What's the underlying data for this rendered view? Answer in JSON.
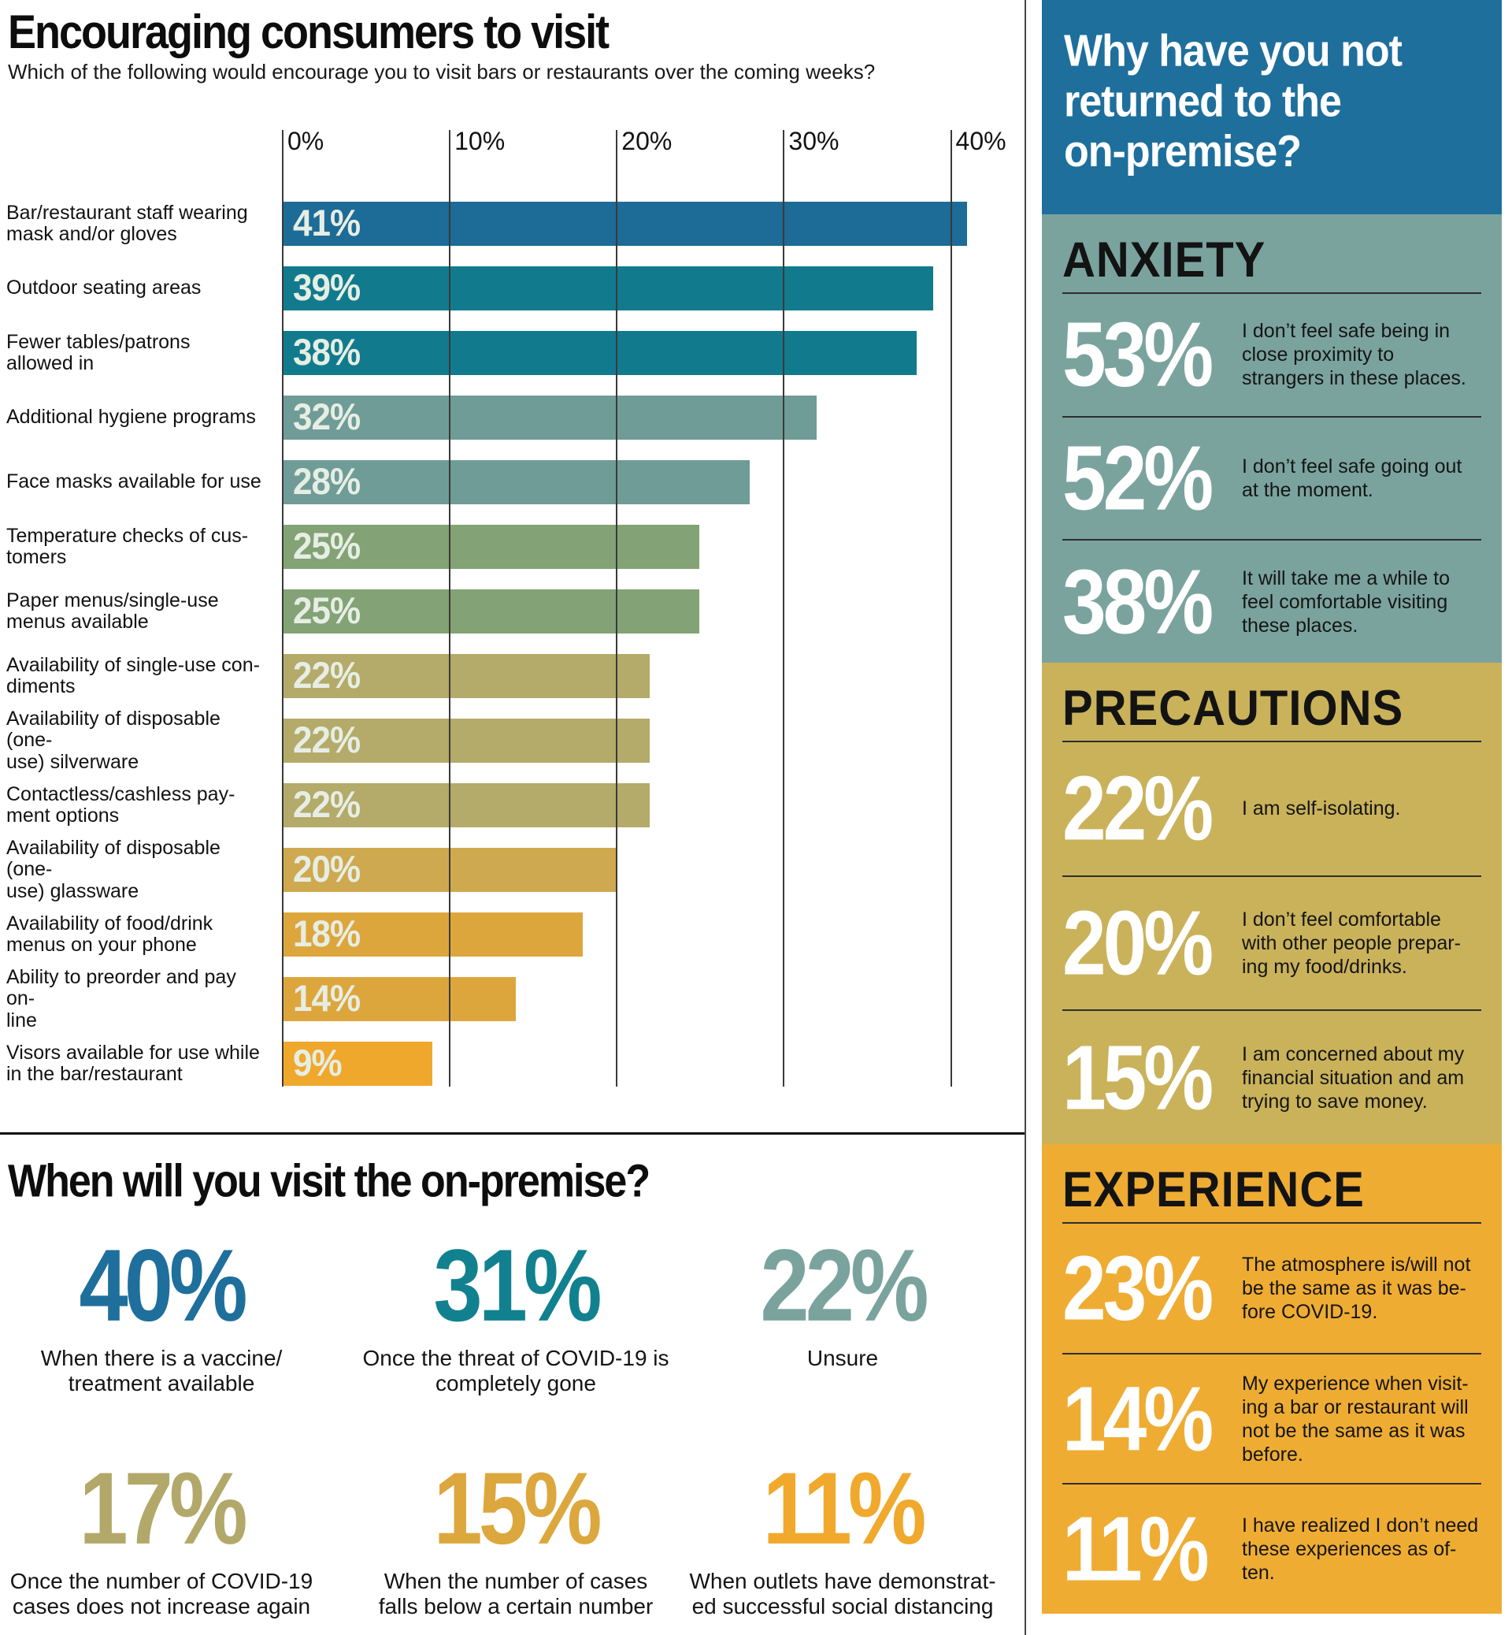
{
  "chart_data": {
    "type": "bar",
    "orientation": "horizontal",
    "title": "Encouraging consumers to visit",
    "subtitle": "Which of the following would encourage you to visit bars or restaurants over the coming weeks?",
    "xlabel": "",
    "ylabel": "",
    "xlim": [
      0,
      44.5
    ],
    "grid": true,
    "axis_ticks": [
      "0%",
      "10%",
      "20%",
      "30%",
      "40%"
    ],
    "categories": [
      "Bar/restaurant staff wearing\nmask and/or gloves",
      "Outdoor seating areas",
      "Fewer tables/patrons\nallowed in",
      "Additional hygiene programs",
      "Face masks available for use",
      "Temperature checks of cus-\ntomers",
      "Paper menus/single-use\nmenus available",
      "Availability of single-use con-\ndiments",
      "Availability of disposable (one-\nuse) silverware",
      "Contactless/cashless pay-\nment options",
      "Availability of disposable (one-\nuse) glassware",
      "Availability of food/drink\nmenus on your phone",
      "Ability to preorder and pay on-\nline",
      "Visors available for use while\nin the bar/restaurant"
    ],
    "values": [
      41,
      39,
      38,
      32,
      28,
      25,
      25,
      22,
      22,
      22,
      20,
      18,
      14,
      9
    ],
    "value_labels": [
      "41%",
      "39%",
      "38%",
      "32%",
      "28%",
      "25%",
      "25%",
      "22%",
      "22%",
      "22%",
      "20%",
      "18%",
      "14%",
      "9%"
    ],
    "bar_colors": [
      "#1d6b97",
      "#117b8d",
      "#117b8d",
      "#6f9c97",
      "#6f9c97",
      "#83a275",
      "#83a275",
      "#b4aa69",
      "#b4aa69",
      "#b4aa69",
      "#cfa94f",
      "#dda63c",
      "#dda63c",
      "#f0a82c"
    ],
    "value_label_color": "#e6eee4"
  },
  "when_visit": {
    "title": "When will you visit the on-premise?",
    "stats": [
      {
        "value": "40%",
        "color": "#1e6f9c",
        "label": "When there is a vaccine/\ntreatment available"
      },
      {
        "value": "31%",
        "color": "#12818f",
        "label": "Once the threat of COVID-19 is\ncompletely gone"
      },
      {
        "value": "22%",
        "color": "#7aa39e",
        "label": "Unsure"
      },
      {
        "value": "17%",
        "color": "#b2a86a",
        "label": "Once the number of COVID-19\ncases does not increase again"
      },
      {
        "value": "15%",
        "color": "#dca73d",
        "label": "When the number of cases\nfalls below a certain number"
      },
      {
        "value": "11%",
        "color": "#f0a92d",
        "label": "When outlets have demonstrat-\ned successful social distancing"
      }
    ]
  },
  "sidebar": {
    "title": "Why have you not\nreturned to the\non-premise?",
    "title_bg": "#1e6f9c",
    "sections": [
      {
        "heading": "ANXIETY",
        "bg": "#7aa39e",
        "items": [
          {
            "value": "53%",
            "text": "I don’t feel safe being in\nclose proximity to\nstrangers in these places."
          },
          {
            "value": "52%",
            "text": "I don’t feel safe going out\nat the moment."
          },
          {
            "value": "38%",
            "text": "It will take me a while to\nfeel comfortable visiting\nthese places."
          }
        ]
      },
      {
        "heading": "PRECAUTIONS",
        "bg": "#c9b25a",
        "items": [
          {
            "value": "22%",
            "text": "I am self-isolating."
          },
          {
            "value": "20%",
            "text": "I don’t feel comfortable\nwith other people prepar-\ning my food/drinks."
          },
          {
            "value": "15%",
            "text": "I am concerned about my\nfinancial situation and am\ntrying to save money."
          }
        ]
      },
      {
        "heading": "EXPERIENCE",
        "bg": "#efac33",
        "items": [
          {
            "value": "23%",
            "text": "The atmosphere is/will not\nbe the same as it was be-\nfore COVID-19."
          },
          {
            "value": "14%",
            "text": "My experience when visit-\ning a bar or restaurant will\nnot be the same as it was\nbefore."
          },
          {
            "value": "11%",
            "text": "I have realized I don’t need\nthese experiences as of-\nten."
          }
        ]
      }
    ]
  }
}
